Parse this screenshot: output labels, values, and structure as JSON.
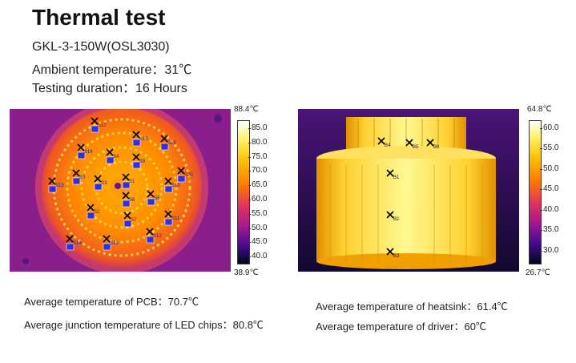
{
  "title": "Thermal test",
  "info": {
    "model": "GKL-3-150W(OSL3030)",
    "ambient": "Ambient temperature：31℃",
    "duration": "Testing duration：16 Hours"
  },
  "left_image": {
    "max_label": "88.4℃",
    "min_label": "38.9℃",
    "ticks": [
      "85.0",
      "80.0",
      "75.0",
      "70.0",
      "65.0",
      "60.0",
      "55.0",
      "50.0",
      "45.0",
      "40.0"
    ],
    "markers": [
      "S17",
      "S16",
      "S18",
      "S19",
      "S8",
      "S4",
      "S9",
      "S20",
      "S3",
      "S1",
      "S10",
      "S15",
      "S5",
      "S6",
      "S2",
      "S7",
      "S11",
      "S14",
      "S13",
      "S12"
    ],
    "captions": {
      "pcb": "Average temperature of PCB：70.7℃",
      "junction": "Average junction temperature of LED chips：80.8℃"
    }
  },
  "right_image": {
    "max_label": "64.8℃",
    "min_label": "26.7℃",
    "ticks": [
      "60.0",
      "55.0",
      "50.0",
      "45.0",
      "40.0",
      "35.0",
      "30.0"
    ],
    "markers": [
      "B4",
      "B5",
      "B6",
      "B1",
      "B2",
      "B3"
    ],
    "captions": {
      "heatsink": "Average temperature of heatsink：61.4℃",
      "driver": "Average temperature of driver：60℃"
    }
  }
}
